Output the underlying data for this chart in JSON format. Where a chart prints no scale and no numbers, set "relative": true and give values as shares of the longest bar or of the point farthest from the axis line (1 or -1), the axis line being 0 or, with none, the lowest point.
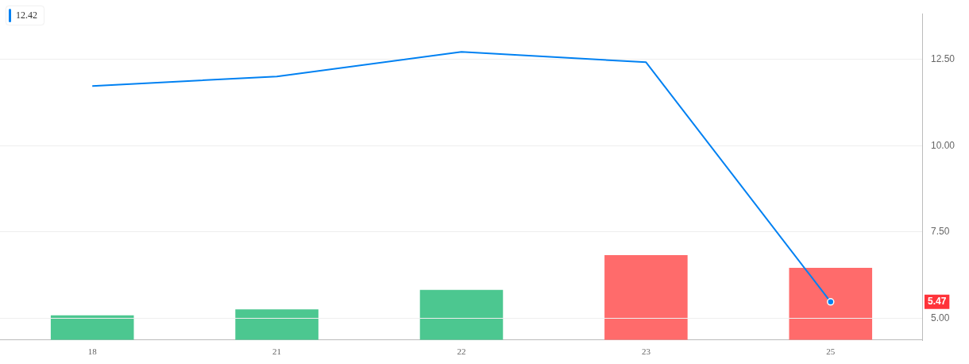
{
  "chart_data": [
    {
      "type": "line",
      "categories": [
        "18",
        "21",
        "22",
        "23",
        "25"
      ],
      "series": [
        {
          "color": "#0081f2",
          "values": [
            11.73,
            12.01,
            12.72,
            12.42,
            5.47
          ]
        }
      ],
      "ylim": [
        4.36,
        13.83
      ],
      "yticks": [
        {
          "value": 5,
          "label": "5.00"
        },
        {
          "value": 7.5,
          "label": "7.50"
        },
        {
          "value": 10,
          "label": "10.00"
        },
        {
          "value": 12.5,
          "label": "12.50"
        }
      ],
      "grid": "y",
      "marker": "none",
      "tick_labels": "y",
      "line_style": "solid",
      "annotations": [
        "12.42",
        "5.47"
      ]
    },
    {
      "type": "bar",
      "relative": true,
      "categories": [
        "18",
        "21",
        "22",
        "23",
        "25"
      ],
      "colors": [
        "#4cc790",
        "#4cc790",
        "#4cc790",
        "#ff6b6b",
        "#ff6b6b"
      ],
      "values": [
        0.29,
        0.36,
        0.59,
        1,
        0.85
      ]
    }
  ]
}
